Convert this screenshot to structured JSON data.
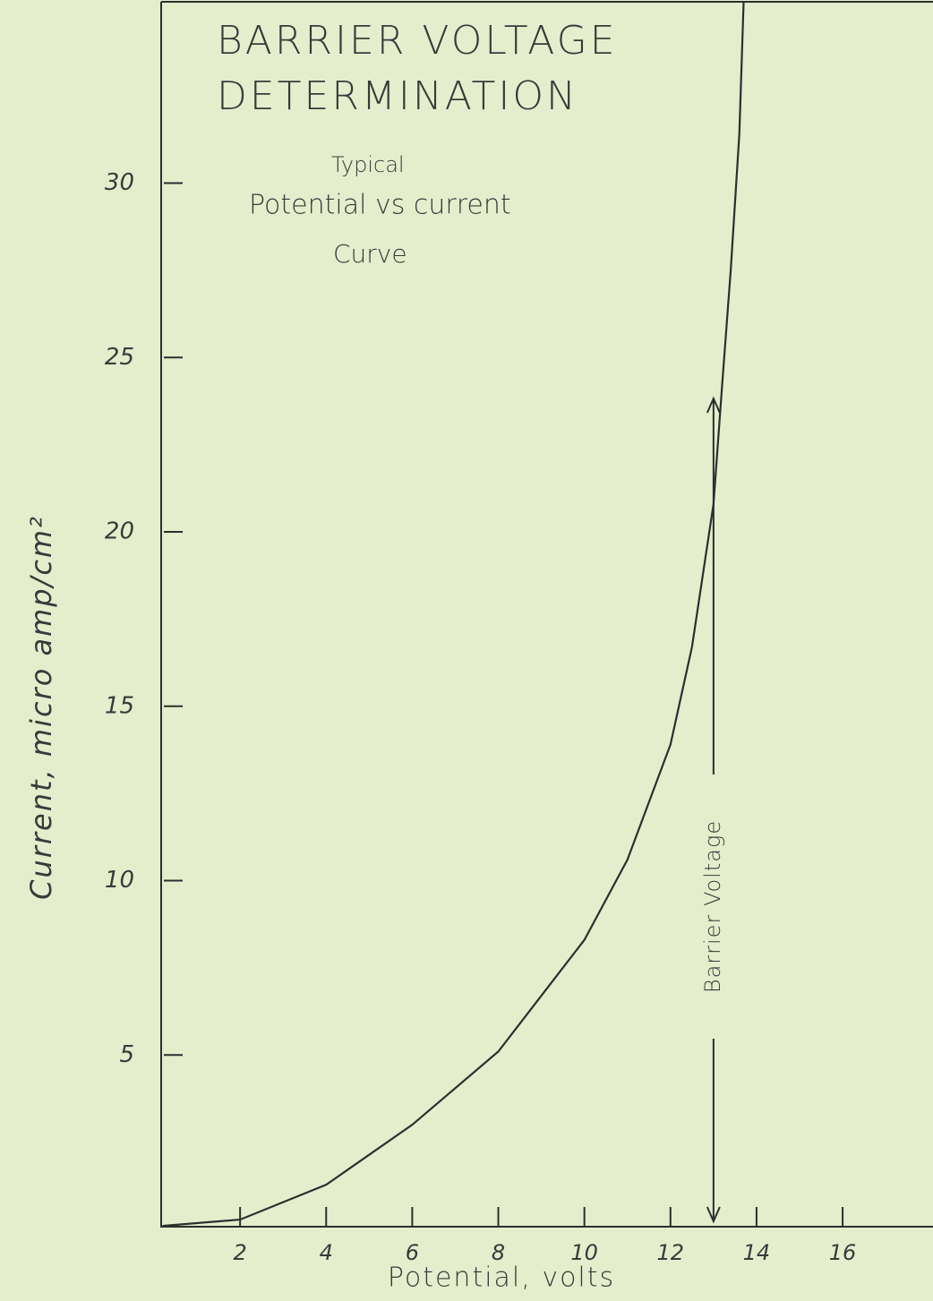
{
  "chart_data": {
    "type": "line",
    "title": [
      "BARRIER VOLTAGE",
      "DETERMINATION"
    ],
    "subtitle": [
      "Typical",
      "Potential vs current",
      "Curve"
    ],
    "x_label": "Potential, volts",
    "y_label": "Current, micro amp/cm²",
    "x": [
      0.2,
      2,
      4,
      6,
      8,
      10,
      11,
      12,
      12.5,
      13,
      13.2,
      13.4,
      13.6,
      13.7
    ],
    "values": [
      0.1,
      0.28,
      1.28,
      3.0,
      5.1,
      8.3,
      10.6,
      13.9,
      16.7,
      20.8,
      24.2,
      27.5,
      31.4,
      35.2
    ],
    "color": "#2e2e2e",
    "xlim": [
      0,
      18.1
    ],
    "ylim": [
      0,
      35.2
    ],
    "xticks": [
      2,
      4,
      6,
      8,
      10,
      12,
      14,
      16
    ],
    "yticks": [
      5,
      10,
      15,
      20,
      25,
      30
    ],
    "annotations": [
      {
        "text": "Barrier Voltage",
        "x": 13
      }
    ]
  }
}
